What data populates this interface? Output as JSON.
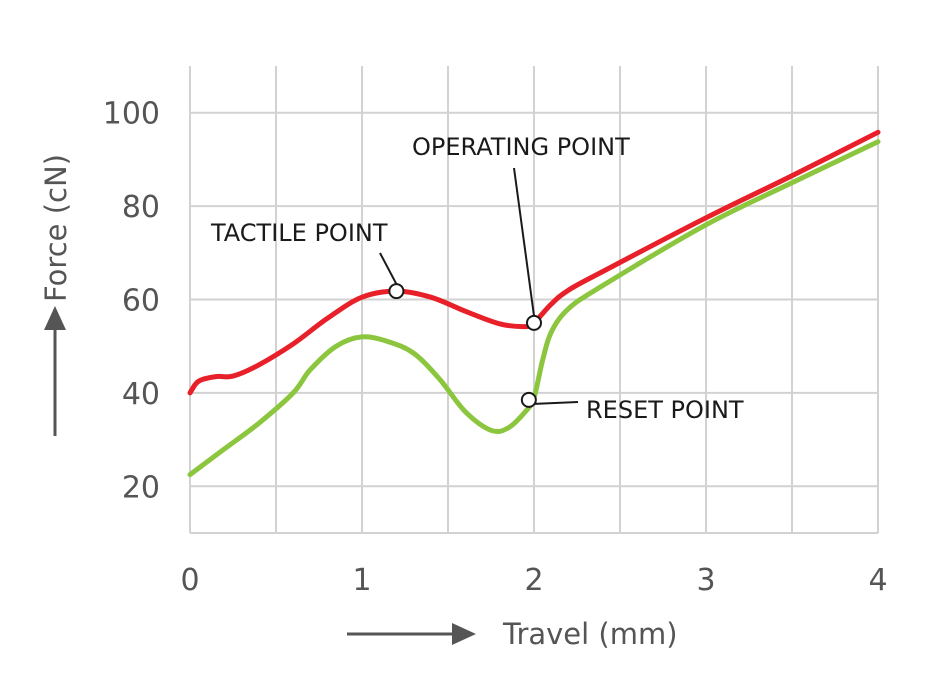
{
  "chart_data": {
    "type": "line",
    "xlabel": "Travel (mm)",
    "ylabel": "Force (cN)",
    "xlim": [
      0,
      4
    ],
    "ylim": [
      10,
      110
    ],
    "x_ticks": [
      "0",
      "1",
      "2",
      "3",
      "4"
    ],
    "y_ticks": [
      "20",
      "40",
      "60",
      "80",
      "100"
    ],
    "grid": true,
    "colors": {
      "red_series": "#e8202a",
      "green_series": "#8cc63f"
    },
    "series": [
      {
        "color": "#e8202a",
        "points": [
          [
            0.0,
            40
          ],
          [
            0.05,
            42.5
          ],
          [
            0.15,
            43.5
          ],
          [
            0.25,
            43.6
          ],
          [
            0.4,
            46
          ],
          [
            0.6,
            50.5
          ],
          [
            0.8,
            56
          ],
          [
            1.0,
            60.5
          ],
          [
            1.2,
            61.8
          ],
          [
            1.4,
            60.5
          ],
          [
            1.6,
            57.5
          ],
          [
            1.8,
            54.8
          ],
          [
            1.95,
            54.2
          ],
          [
            2.0,
            55
          ],
          [
            2.1,
            59
          ],
          [
            2.2,
            62
          ],
          [
            2.4,
            66
          ],
          [
            3.0,
            77.5
          ],
          [
            3.5,
            86.5
          ],
          [
            4.0,
            95.8
          ]
        ]
      },
      {
        "color": "#8cc63f",
        "points": [
          [
            0.0,
            22.5
          ],
          [
            0.2,
            28
          ],
          [
            0.4,
            33.5
          ],
          [
            0.6,
            40
          ],
          [
            0.7,
            45
          ],
          [
            0.85,
            50
          ],
          [
            1.0,
            52
          ],
          [
            1.15,
            51
          ],
          [
            1.3,
            48.5
          ],
          [
            1.45,
            43
          ],
          [
            1.6,
            36
          ],
          [
            1.75,
            32
          ],
          [
            1.85,
            32.5
          ],
          [
            1.95,
            36
          ],
          [
            2.0,
            39
          ],
          [
            2.05,
            47
          ],
          [
            2.1,
            53
          ],
          [
            2.2,
            58
          ],
          [
            2.4,
            63
          ],
          [
            3.0,
            76
          ],
          [
            3.5,
            85
          ],
          [
            4.0,
            93.8
          ]
        ]
      }
    ],
    "annotations": [
      {
        "text": "TACTILE POINT",
        "x": 1.2,
        "y": 61.8
      },
      {
        "text": "OPERATING POINT",
        "x": 2.0,
        "y": 55
      },
      {
        "text": "RESET POINT",
        "x": 1.97,
        "y": 38.5
      }
    ]
  }
}
